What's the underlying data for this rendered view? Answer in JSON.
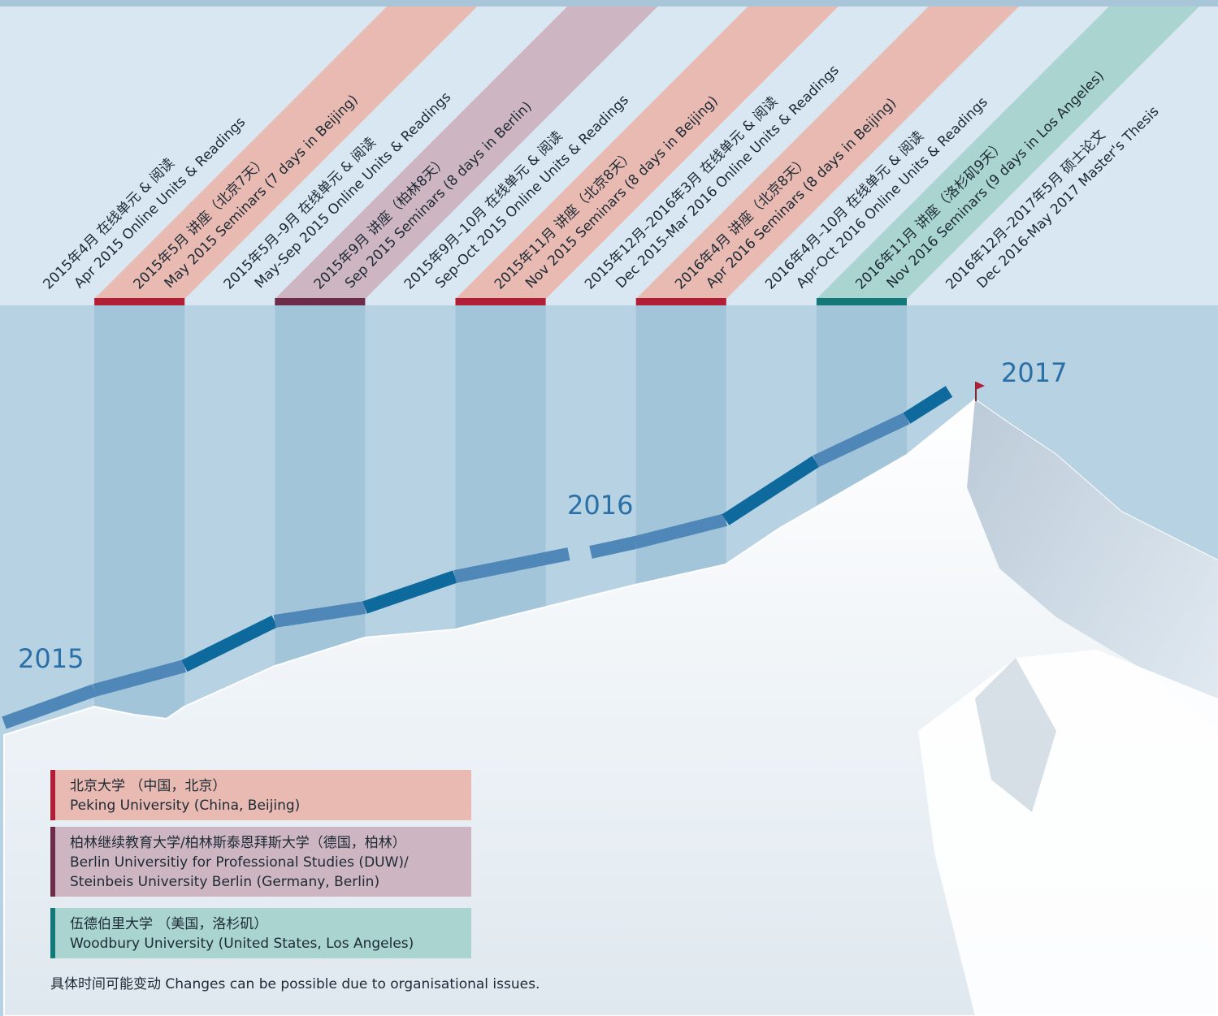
{
  "phases": [
    {
      "zh": "2015年4月 在线单元 & 阅读",
      "en": "Apr 2015 Online Units & Readings"
    },
    {
      "zh": "2015年5月 讲座（北京7天）",
      "en": "May 2015 Seminars (7 days in Beijing)"
    },
    {
      "zh": "2015年5月–9月 在线单元 & 阅读",
      "en": "May-Sep 2015 Online Units & Readings"
    },
    {
      "zh": "2015年9月 讲座（柏林8天）",
      "en": "Sep 2015 Seminars (8 days in Berlin)"
    },
    {
      "zh": "2015年9月–10月 在线单元 & 阅读",
      "en": "Sep-Oct 2015 Online Units & Readings"
    },
    {
      "zh": "2015年11月 讲座（北京8天）",
      "en": "Nov 2015 Seminars (8 days in Beijing)"
    },
    {
      "zh": "2015年12月–2016年3月 在线单元 & 阅读",
      "en": "Dec 2015-Mar 2016 Online Units & Readings"
    },
    {
      "zh": "2016年4月 讲座（北京8天）",
      "en": "Apr 2016 Seminars (8 days in Beijing)"
    },
    {
      "zh": "2016年4月–10月 在线单元 & 阅读",
      "en": "Apr-Oct 2016 Online Units & Readings"
    },
    {
      "zh": "2016年11月 讲座（洛杉矶9天）",
      "en": "Nov 2016 Seminars (9 days in Los Angeles)"
    },
    {
      "zh": "2016年12月–2017年5月 硕士论文",
      "en": "Dec 2016-May 2017 Master's Thesis"
    }
  ],
  "years": [
    "2015",
    "2016",
    "2017"
  ],
  "legend": [
    {
      "lines": [
        "北京大学 （中国，北京）",
        "Peking University (China, Beijing)"
      ]
    },
    {
      "lines": [
        "柏林继续教育大学/柏林斯泰恩拜斯大学（德国，柏林）",
        "Berlin Universitiy for Professional Studies (DUW)/",
        "Steinbeis University Berlin (Germany, Berlin)"
      ]
    },
    {
      "lines": [
        "伍德伯里大学 （美国，洛杉矶）",
        "Woodbury University (United States, Los Angeles)"
      ]
    }
  ],
  "note": "具体时间可能变动  Changes can be possible due to organisational issues."
}
